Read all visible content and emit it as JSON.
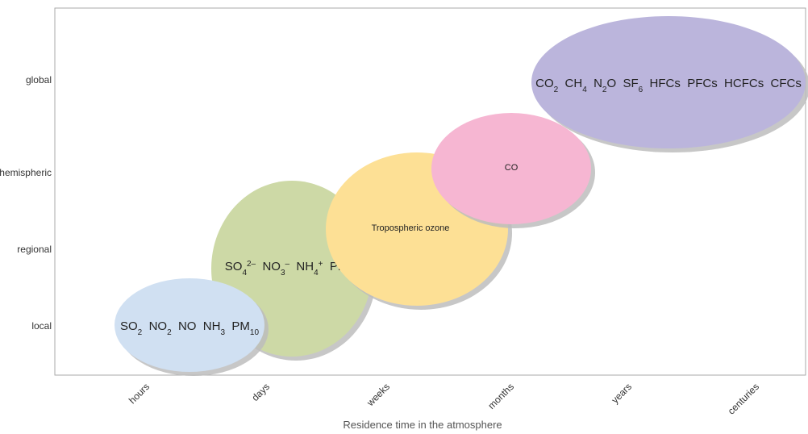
{
  "chart_data": {
    "type": "bubble-diagram",
    "xlabel": "Residence time in the atmosphere",
    "x_categories": [
      "hours",
      "days",
      "weeks",
      "months",
      "years",
      "centuries"
    ],
    "y_categories": [
      "local",
      "regional",
      "hemispheric",
      "global"
    ],
    "bubbles": [
      {
        "id": "local-pollutants",
        "color": "#d0e0f2",
        "x_span": [
          "hours",
          "days"
        ],
        "y_level": "local",
        "label_html": "SO<tspan baseline-shift='sub' font-size='10'>2</tspan>  NO<tspan baseline-shift='sub' font-size='10'>2</tspan>  NO  NH<tspan baseline-shift='sub' font-size='10'>3</tspan>  PM<tspan baseline-shift='sub' font-size='10'>10</tspan>"
      },
      {
        "id": "regional-pollutants",
        "color": "#cdd9a6",
        "x_span": [
          "days",
          "weeks"
        ],
        "y_level": "regional",
        "label_html": "SO<tspan baseline-shift='sub' font-size='10'>4</tspan><tspan baseline-shift='super' font-size='10'>2–</tspan>  NO<tspan baseline-shift='sub' font-size='10'>3</tspan><tspan baseline-shift='super' font-size='10'>–</tspan>  NH<tspan baseline-shift='sub' font-size='10'>4</tspan><tspan baseline-shift='super' font-size='10'>+</tspan>  PM<tspan baseline-shift='sub' font-size='10'>2.5</tspan>"
      },
      {
        "id": "tropospheric-ozone",
        "color": "#fde095",
        "x_span": [
          "weeks",
          "months"
        ],
        "y_level": "hemispheric",
        "label_text": "Tropospheric ozone"
      },
      {
        "id": "co",
        "color": "#f6b6d2",
        "x_span": [
          "months",
          "years"
        ],
        "y_level": "hemispheric",
        "label_text": "CO"
      },
      {
        "id": "greenhouse-gases",
        "color": "#bbb5dc",
        "x_span": [
          "years",
          "centuries"
        ],
        "y_level": "global",
        "label_html": "CO<tspan baseline-shift='sub' font-size='10'>2</tspan>  CH<tspan baseline-shift='sub' font-size='10'>4</tspan>  N<tspan baseline-shift='sub' font-size='10'>2</tspan>O  SF<tspan baseline-shift='sub' font-size='10'>6</tspan>  HFCs  PFCs  HCFCs  CFCs"
      }
    ]
  }
}
